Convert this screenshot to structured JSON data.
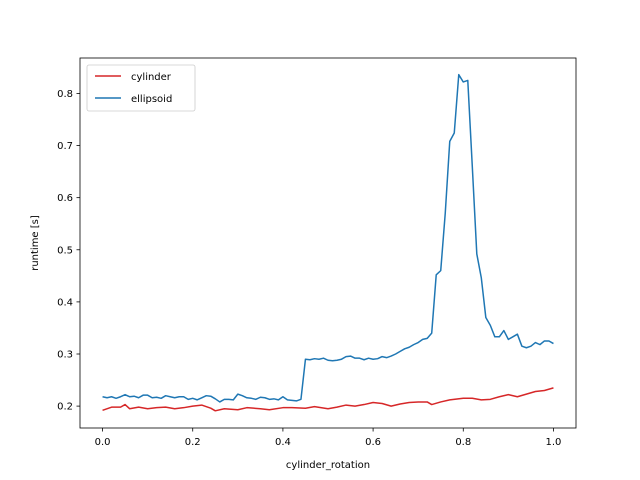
{
  "chart_data": {
    "type": "line",
    "xlabel": "cylinder_rotation",
    "ylabel": "runtime [s]",
    "xlim": [
      -0.05,
      1.05
    ],
    "ylim": [
      0.158,
      0.868
    ],
    "xticks": [
      0.0,
      0.2,
      0.4,
      0.6,
      0.8,
      1.0
    ],
    "xtick_labels": [
      "0.0",
      "0.2",
      "0.4",
      "0.6",
      "0.8",
      "1.0"
    ],
    "yticks": [
      0.2,
      0.3,
      0.4,
      0.5,
      0.6,
      0.7,
      0.8
    ],
    "ytick_labels": [
      "0.2",
      "0.3",
      "0.4",
      "0.5",
      "0.6",
      "0.7",
      "0.8"
    ],
    "grid": false,
    "legend_placement": "top-left",
    "series": [
      {
        "name": "cylinder",
        "color": "#d62728",
        "points": [
          [
            0.0,
            0.192
          ],
          [
            0.02,
            0.198
          ],
          [
            0.04,
            0.198
          ],
          [
            0.05,
            0.203
          ],
          [
            0.06,
            0.195
          ],
          [
            0.08,
            0.198
          ],
          [
            0.1,
            0.195
          ],
          [
            0.12,
            0.197
          ],
          [
            0.14,
            0.198
          ],
          [
            0.16,
            0.195
          ],
          [
            0.18,
            0.197
          ],
          [
            0.2,
            0.2
          ],
          [
            0.22,
            0.202
          ],
          [
            0.24,
            0.196
          ],
          [
            0.25,
            0.191
          ],
          [
            0.27,
            0.195
          ],
          [
            0.3,
            0.193
          ],
          [
            0.32,
            0.197
          ],
          [
            0.35,
            0.195
          ],
          [
            0.37,
            0.193
          ],
          [
            0.4,
            0.197
          ],
          [
            0.42,
            0.197
          ],
          [
            0.45,
            0.196
          ],
          [
            0.47,
            0.199
          ],
          [
            0.5,
            0.195
          ],
          [
            0.52,
            0.198
          ],
          [
            0.54,
            0.202
          ],
          [
            0.56,
            0.2
          ],
          [
            0.58,
            0.203
          ],
          [
            0.6,
            0.207
          ],
          [
            0.62,
            0.205
          ],
          [
            0.64,
            0.2
          ],
          [
            0.66,
            0.204
          ],
          [
            0.68,
            0.207
          ],
          [
            0.7,
            0.208
          ],
          [
            0.72,
            0.208
          ],
          [
            0.73,
            0.203
          ],
          [
            0.75,
            0.208
          ],
          [
            0.77,
            0.212
          ],
          [
            0.8,
            0.215
          ],
          [
            0.82,
            0.215
          ],
          [
            0.84,
            0.212
          ],
          [
            0.86,
            0.213
          ],
          [
            0.88,
            0.218
          ],
          [
            0.9,
            0.222
          ],
          [
            0.92,
            0.218
          ],
          [
            0.94,
            0.223
          ],
          [
            0.96,
            0.228
          ],
          [
            0.98,
            0.23
          ],
          [
            1.0,
            0.235
          ]
        ]
      },
      {
        "name": "ellipsoid",
        "color": "#1f77b4",
        "points": [
          [
            0.0,
            0.218
          ],
          [
            0.01,
            0.216
          ],
          [
            0.02,
            0.218
          ],
          [
            0.03,
            0.215
          ],
          [
            0.04,
            0.218
          ],
          [
            0.05,
            0.222
          ],
          [
            0.06,
            0.218
          ],
          [
            0.07,
            0.219
          ],
          [
            0.08,
            0.216
          ],
          [
            0.09,
            0.221
          ],
          [
            0.1,
            0.221
          ],
          [
            0.11,
            0.216
          ],
          [
            0.12,
            0.217
          ],
          [
            0.13,
            0.215
          ],
          [
            0.14,
            0.22
          ],
          [
            0.15,
            0.218
          ],
          [
            0.16,
            0.216
          ],
          [
            0.17,
            0.218
          ],
          [
            0.18,
            0.218
          ],
          [
            0.19,
            0.213
          ],
          [
            0.2,
            0.215
          ],
          [
            0.21,
            0.212
          ],
          [
            0.22,
            0.216
          ],
          [
            0.23,
            0.22
          ],
          [
            0.24,
            0.219
          ],
          [
            0.25,
            0.214
          ],
          [
            0.26,
            0.208
          ],
          [
            0.27,
            0.213
          ],
          [
            0.28,
            0.213
          ],
          [
            0.29,
            0.212
          ],
          [
            0.3,
            0.223
          ],
          [
            0.31,
            0.22
          ],
          [
            0.32,
            0.216
          ],
          [
            0.33,
            0.215
          ],
          [
            0.34,
            0.213
          ],
          [
            0.35,
            0.217
          ],
          [
            0.36,
            0.216
          ],
          [
            0.37,
            0.213
          ],
          [
            0.38,
            0.214
          ],
          [
            0.39,
            0.212
          ],
          [
            0.4,
            0.218
          ],
          [
            0.41,
            0.212
          ],
          [
            0.42,
            0.211
          ],
          [
            0.43,
            0.21
          ],
          [
            0.44,
            0.213
          ],
          [
            0.45,
            0.29
          ],
          [
            0.46,
            0.289
          ],
          [
            0.47,
            0.291
          ],
          [
            0.48,
            0.29
          ],
          [
            0.49,
            0.292
          ],
          [
            0.5,
            0.288
          ],
          [
            0.51,
            0.287
          ],
          [
            0.52,
            0.288
          ],
          [
            0.53,
            0.29
          ],
          [
            0.54,
            0.295
          ],
          [
            0.55,
            0.296
          ],
          [
            0.56,
            0.292
          ],
          [
            0.57,
            0.292
          ],
          [
            0.58,
            0.289
          ],
          [
            0.59,
            0.292
          ],
          [
            0.6,
            0.29
          ],
          [
            0.61,
            0.291
          ],
          [
            0.62,
            0.295
          ],
          [
            0.63,
            0.293
          ],
          [
            0.64,
            0.296
          ],
          [
            0.65,
            0.3
          ],
          [
            0.66,
            0.305
          ],
          [
            0.67,
            0.31
          ],
          [
            0.68,
            0.313
          ],
          [
            0.69,
            0.318
          ],
          [
            0.7,
            0.322
          ],
          [
            0.71,
            0.328
          ],
          [
            0.72,
            0.33
          ],
          [
            0.73,
            0.34
          ],
          [
            0.74,
            0.452
          ],
          [
            0.75,
            0.46
          ],
          [
            0.76,
            0.57
          ],
          [
            0.77,
            0.708
          ],
          [
            0.78,
            0.724
          ],
          [
            0.79,
            0.836
          ],
          [
            0.8,
            0.822
          ],
          [
            0.81,
            0.825
          ],
          [
            0.82,
            0.66
          ],
          [
            0.83,
            0.492
          ],
          [
            0.84,
            0.446
          ],
          [
            0.85,
            0.37
          ],
          [
            0.86,
            0.355
          ],
          [
            0.87,
            0.333
          ],
          [
            0.88,
            0.333
          ],
          [
            0.89,
            0.345
          ],
          [
            0.9,
            0.328
          ],
          [
            0.91,
            0.333
          ],
          [
            0.92,
            0.338
          ],
          [
            0.93,
            0.315
          ],
          [
            0.94,
            0.312
          ],
          [
            0.95,
            0.315
          ],
          [
            0.96,
            0.322
          ],
          [
            0.97,
            0.318
          ],
          [
            0.98,
            0.325
          ],
          [
            0.99,
            0.325
          ],
          [
            1.0,
            0.32
          ]
        ]
      }
    ]
  }
}
